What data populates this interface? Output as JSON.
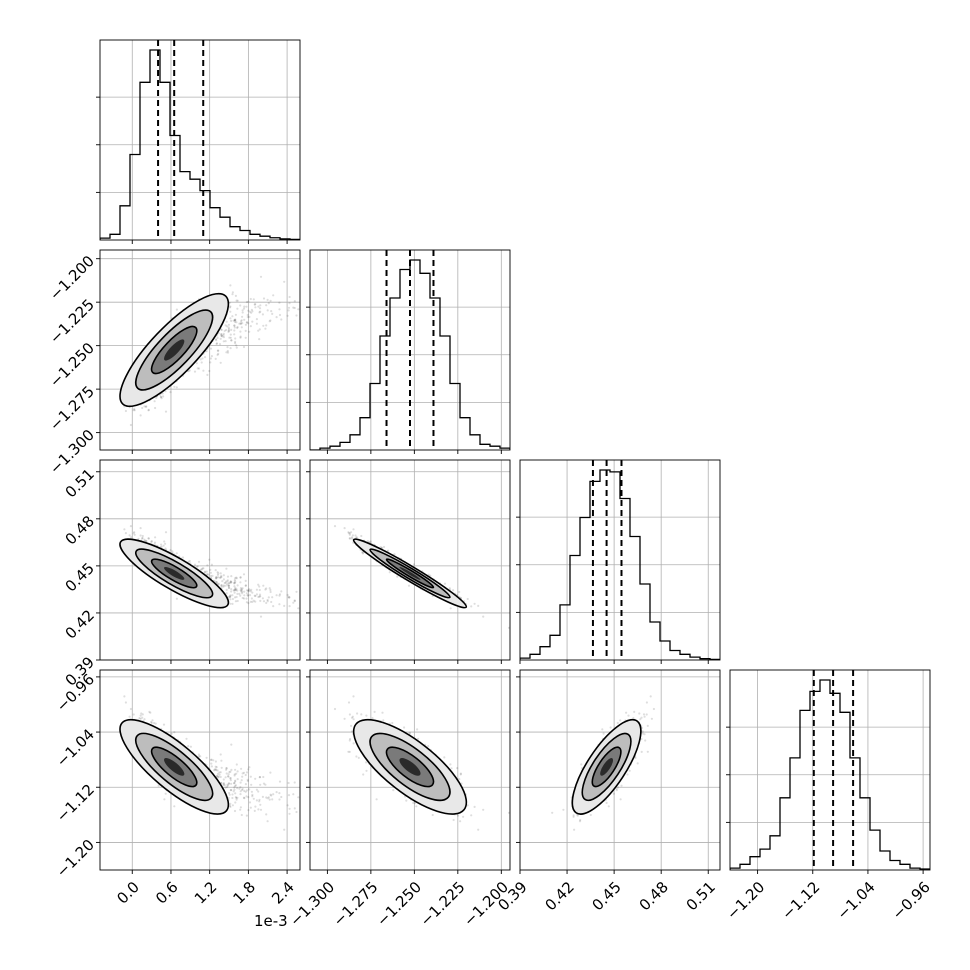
{
  "chart_data": {
    "type": "corner",
    "n_parameters": 4,
    "grid": true,
    "x_offset_label": "1e-3",
    "parameters": [
      {
        "range": [
          -0.0005,
          0.0026
        ],
        "ticks": [
          0.0,
          0.0006,
          0.0012,
          0.0018,
          0.0024
        ],
        "tick_labels": [
          "0.0",
          "0.6",
          "1.2",
          "1.8",
          "2.4"
        ],
        "median": 0.00065,
        "quantiles": [
          0.0004,
          0.00065,
          0.0011
        ],
        "hist": [
          0.01,
          0.03,
          0.18,
          0.45,
          0.83,
          1.0,
          0.83,
          0.55,
          0.36,
          0.32,
          0.26,
          0.17,
          0.12,
          0.07,
          0.05,
          0.03,
          0.02,
          0.012,
          0.006,
          0.003
        ]
      },
      {
        "range": [
          -1.31,
          -1.195
        ],
        "ticks": [
          -1.3,
          -1.275,
          -1.25,
          -1.225,
          -1.2
        ],
        "tick_labels": [
          "−1.300",
          "−1.275",
          "−1.250",
          "−1.225",
          "−1.200"
        ],
        "median": -1.2525,
        "quantiles": [
          -1.266,
          -1.2525,
          -1.239
        ],
        "hist": [
          0.0,
          0.01,
          0.02,
          0.04,
          0.08,
          0.17,
          0.35,
          0.6,
          0.8,
          0.95,
          1.0,
          0.93,
          0.8,
          0.6,
          0.35,
          0.17,
          0.08,
          0.03,
          0.02,
          0.01
        ]
      },
      {
        "range": [
          0.39,
          0.5175
        ],
        "ticks": [
          0.39,
          0.42,
          0.45,
          0.48,
          0.51
        ],
        "tick_labels": [
          "0.39",
          "0.42",
          "0.45",
          "0.48",
          "0.51"
        ],
        "median": 0.4452,
        "quantiles": [
          0.4365,
          0.4452,
          0.4547
        ],
        "hist": [
          0.01,
          0.03,
          0.07,
          0.13,
          0.29,
          0.55,
          0.75,
          0.94,
          1.0,
          0.99,
          0.85,
          0.65,
          0.4,
          0.2,
          0.1,
          0.05,
          0.03,
          0.015,
          0.007,
          0.003
        ]
      },
      {
        "range": [
          -1.24,
          -0.95
        ],
        "ticks": [
          -1.2,
          -1.12,
          -1.04,
          -0.96
        ],
        "tick_labels": [
          "−1.20",
          "−1.12",
          "−1.04",
          "−0.96"
        ],
        "median": -1.0905,
        "quantiles": [
          -1.1185,
          -1.0905,
          -1.0615
        ],
        "hist": [
          0.01,
          0.03,
          0.07,
          0.11,
          0.18,
          0.38,
          0.59,
          0.84,
          0.94,
          1.0,
          0.93,
          0.83,
          0.59,
          0.38,
          0.21,
          0.1,
          0.05,
          0.03,
          0.01,
          0.005
        ]
      }
    ],
    "correlations": [
      [
        1.0,
        0.82,
        -0.85,
        -0.8
      ],
      [
        0.82,
        1.0,
        -0.97,
        -0.75
      ],
      [
        -0.85,
        -0.97,
        1.0,
        0.76
      ],
      [
        -0.8,
        -0.75,
        0.76,
        1.0
      ]
    ]
  }
}
